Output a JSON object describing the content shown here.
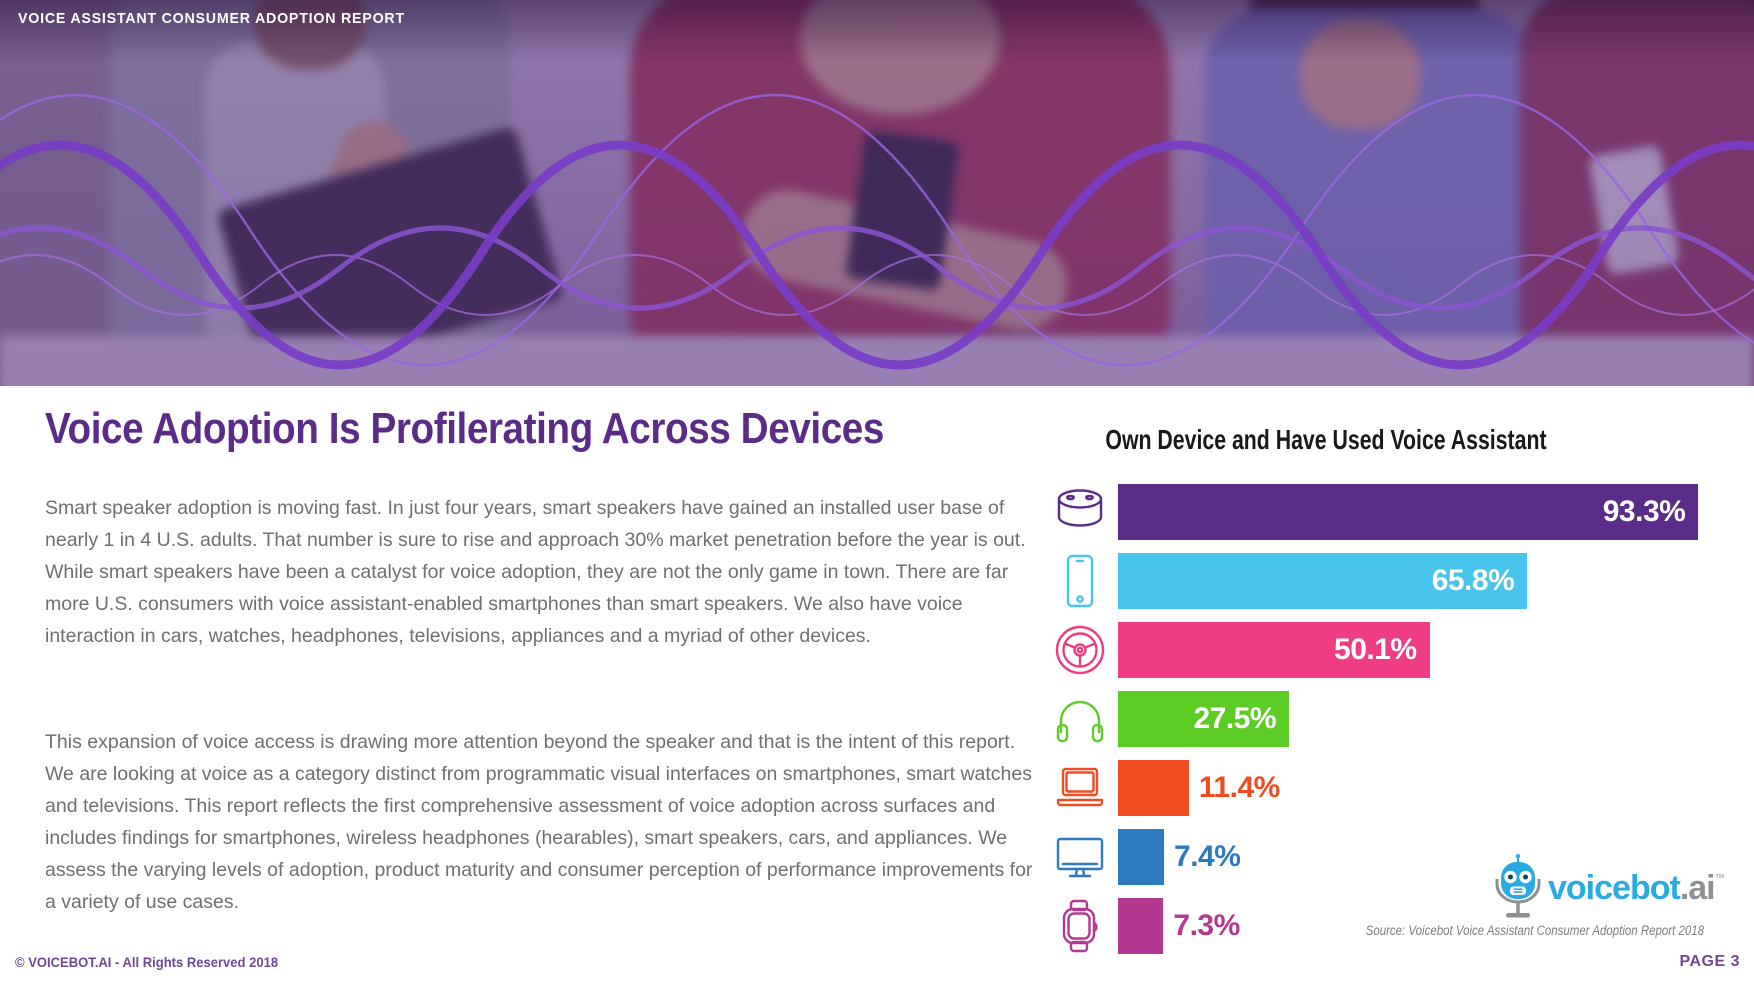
{
  "header": {
    "kicker": "VOICE ASSISTANT CONSUMER ADOPTION REPORT"
  },
  "main": {
    "title": "Voice Adoption Is Profilerating Across Devices",
    "paragraphs": [
      "Smart speaker adoption is moving fast. In just four years, smart speakers have gained an installed user base of nearly 1 in 4 U.S. adults. That number is sure to rise and approach 30% market penetration before the year is out. While smart speakers have been a catalyst for voice adoption, they are not the only game in town. There are far more U.S. consumers with voice assistant-enabled smartphones than smart speakers. We also have voice interaction in cars, watches, headphones, televisions, appliances and a myriad of other devices.",
      "This expansion of voice access is drawing more attention beyond the speaker and that is the intent of this report. We are looking at voice as a category distinct from programmatic visual interfaces on smartphones, smart watches and televisions. This report reflects the first comprehensive assessment of voice adoption across surfaces and includes findings for smartphones, wireless headphones (hearables), smart speakers, cars, and appliances. We assess the varying levels of adoption, product maturity and consumer perception of performance improvements for a variety of use cases."
    ]
  },
  "chart_data": {
    "type": "bar",
    "orientation": "horizontal",
    "title": "Own Device and Have Used Voice Assistant",
    "categories": [
      "Smart speaker",
      "Smartphone",
      "Car",
      "Headphones",
      "Laptop",
      "Television",
      "Smartwatch"
    ],
    "values": [
      93.3,
      65.8,
      50.1,
      27.5,
      11.4,
      7.4,
      7.3
    ],
    "labels": [
      "93.3%",
      "65.8%",
      "50.1%",
      "27.5%",
      "11.4%",
      "7.4%",
      "7.3%"
    ],
    "colors": [
      "#5b2c87",
      "#47c4ec",
      "#ee3c85",
      "#5ccb23",
      "#f04c22",
      "#2d7abf",
      "#b43890"
    ],
    "icons": [
      "smart-speaker-icon",
      "smartphone-icon",
      "car-steering-wheel-icon",
      "headphones-icon",
      "laptop-icon",
      "tv-icon",
      "smartwatch-icon"
    ],
    "xlim": [
      0,
      100
    ],
    "grid": false,
    "legend": false,
    "value_label_inside_min": 20,
    "source": "Source: Voicebot Voice Assistant Consumer Adoption Report 2018"
  },
  "branding": {
    "logo_text_primary": "voicebot",
    "logo_text_secondary": ".ai",
    "trademark": "™",
    "logo_blue": "#29abe2",
    "logo_gray": "#8e9093"
  },
  "theme": {
    "accent_purple": "#5b2c87",
    "footer_purple": "#6d4896",
    "body_text_gray": "#6f6f6f"
  },
  "footer": {
    "copyright": "© VOICEBOT.AI - All Rights Reserved 2018",
    "page": "PAGE 3"
  }
}
